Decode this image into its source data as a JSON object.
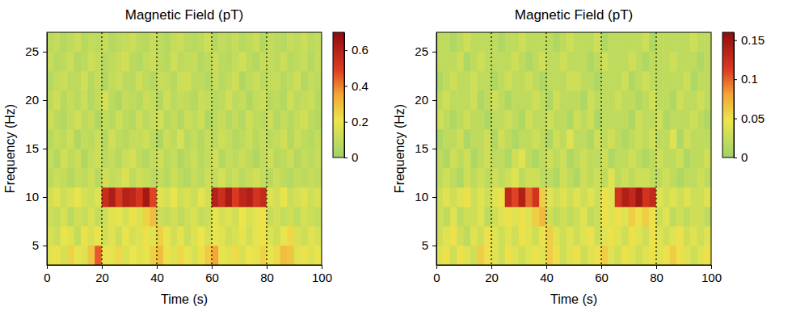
{
  "chart_data": [
    {
      "type": "heatmap",
      "title": "Magnetic Field (pT)",
      "xlabel": "Time (s)",
      "ylabel": "Frequency (Hz)",
      "xlim": [
        0,
        100
      ],
      "xticks": [
        0,
        20,
        40,
        60,
        80,
        100
      ],
      "ylim": [
        3,
        27
      ],
      "yticks": [
        5,
        10,
        15,
        20,
        25
      ],
      "x_bins": [
        0,
        2.5,
        5,
        7.5,
        10,
        12.5,
        15,
        17.5,
        20,
        22.5,
        25,
        27.5,
        30,
        32.5,
        35,
        37.5,
        40,
        42.5,
        45,
        47.5,
        50,
        52.5,
        55,
        57.5,
        60,
        62.5,
        65,
        67.5,
        70,
        72.5,
        75,
        77.5,
        80,
        82.5,
        85,
        87.5,
        90,
        92.5,
        95,
        97.5,
        100
      ],
      "y_bins": [
        3,
        5,
        7,
        9,
        11,
        13,
        15,
        17,
        19,
        21,
        23,
        25,
        27
      ],
      "vlines": [
        20,
        40,
        60,
        80
      ],
      "line_style": "dotted",
      "colorbar": {
        "lim": [
          0,
          0.7
        ],
        "ticks": [
          0,
          0.2,
          0.4,
          0.6
        ]
      },
      "z": [
        [
          0.18,
          0.22,
          0.15,
          0.25,
          0.2,
          0.17,
          0.28,
          0.45,
          0.22,
          0.19,
          0.24,
          0.16,
          0.21,
          0.18,
          0.2,
          0.26,
          0.3,
          0.22,
          0.17,
          0.24,
          0.2,
          0.15,
          0.22,
          0.27,
          0.35,
          0.2,
          0.18,
          0.23,
          0.16,
          0.21,
          0.19,
          0.25,
          0.2,
          0.23,
          0.3,
          0.28,
          0.18,
          0.22,
          0.17,
          0.2
        ],
        [
          0.15,
          0.12,
          0.2,
          0.18,
          0.1,
          0.22,
          0.16,
          0.2,
          0.14,
          0.18,
          0.12,
          0.2,
          0.15,
          0.17,
          0.22,
          0.18,
          0.26,
          0.2,
          0.14,
          0.19,
          0.12,
          0.17,
          0.21,
          0.15,
          0.2,
          0.18,
          0.13,
          0.16,
          0.2,
          0.14,
          0.19,
          0.22,
          0.17,
          0.13,
          0.2,
          0.24,
          0.16,
          0.12,
          0.18,
          0.15
        ],
        [
          0.12,
          0.1,
          0.15,
          0.08,
          0.14,
          0.11,
          0.16,
          0.1,
          0.13,
          0.18,
          0.2,
          0.15,
          0.22,
          0.17,
          0.25,
          0.3,
          0.12,
          0.1,
          0.14,
          0.09,
          0.13,
          0.16,
          0.1,
          0.12,
          0.2,
          0.15,
          0.18,
          0.14,
          0.21,
          0.16,
          0.19,
          0.22,
          0.11,
          0.14,
          0.1,
          0.13,
          0.09,
          0.15,
          0.12,
          0.1
        ],
        [
          0.14,
          0.18,
          0.12,
          0.16,
          0.2,
          0.15,
          0.13,
          0.17,
          0.55,
          0.62,
          0.5,
          0.6,
          0.58,
          0.52,
          0.64,
          0.48,
          0.18,
          0.15,
          0.2,
          0.13,
          0.16,
          0.12,
          0.19,
          0.14,
          0.6,
          0.54,
          0.63,
          0.5,
          0.58,
          0.61,
          0.52,
          0.56,
          0.17,
          0.14,
          0.2,
          0.12,
          0.15,
          0.18,
          0.13,
          0.16
        ],
        [
          0.08,
          0.12,
          0.1,
          0.06,
          0.11,
          0.09,
          0.13,
          0.07,
          0.14,
          0.1,
          0.12,
          0.16,
          0.09,
          0.13,
          0.11,
          0.08,
          0.1,
          0.07,
          0.12,
          0.09,
          0.06,
          0.11,
          0.08,
          0.13,
          0.1,
          0.15,
          0.09,
          0.12,
          0.08,
          0.11,
          0.14,
          0.1,
          0.07,
          0.12,
          0.09,
          0.06,
          0.1,
          0.08,
          0.11,
          0.09
        ],
        [
          0.1,
          0.06,
          0.14,
          0.09,
          0.12,
          0.05,
          0.1,
          0.13,
          0.08,
          0.11,
          0.07,
          0.12,
          0.15,
          0.09,
          0.06,
          0.1,
          0.13,
          0.08,
          0.11,
          0.05,
          0.09,
          0.12,
          0.07,
          0.1,
          0.14,
          0.06,
          0.11,
          0.08,
          0.12,
          0.09,
          0.05,
          0.1,
          0.13,
          0.07,
          0.09,
          0.12,
          0.06,
          0.1,
          0.08,
          0.11
        ],
        [
          0.07,
          0.11,
          0.09,
          0.13,
          0.05,
          0.1,
          0.08,
          0.12,
          0.06,
          0.14,
          0.09,
          0.07,
          0.11,
          0.1,
          0.13,
          0.08,
          0.05,
          0.12,
          0.09,
          0.15,
          0.07,
          0.1,
          0.06,
          0.11,
          0.08,
          0.13,
          0.1,
          0.06,
          0.09,
          0.12,
          0.07,
          0.11,
          0.08,
          0.1,
          0.14,
          0.06,
          0.12,
          0.09,
          0.07,
          0.1
        ],
        [
          0.12,
          0.08,
          0.06,
          0.1,
          0.14,
          0.09,
          0.11,
          0.05,
          0.1,
          0.07,
          0.13,
          0.09,
          0.06,
          0.12,
          0.08,
          0.11,
          0.14,
          0.07,
          0.1,
          0.06,
          0.12,
          0.09,
          0.13,
          0.05,
          0.08,
          0.11,
          0.07,
          0.1,
          0.06,
          0.13,
          0.09,
          0.08,
          0.12,
          0.06,
          0.1,
          0.07,
          0.11,
          0.14,
          0.09,
          0.06
        ],
        [
          0.09,
          0.13,
          0.07,
          0.11,
          0.08,
          0.12,
          0.06,
          0.1,
          0.15,
          0.08,
          0.05,
          0.11,
          0.09,
          0.07,
          0.12,
          0.1,
          0.06,
          0.13,
          0.08,
          0.11,
          0.09,
          0.06,
          0.12,
          0.1,
          0.07,
          0.09,
          0.14,
          0.08,
          0.11,
          0.05,
          0.1,
          0.12,
          0.07,
          0.09,
          0.06,
          0.13,
          0.08,
          0.1,
          0.12,
          0.07
        ],
        [
          0.06,
          0.1,
          0.12,
          0.08,
          0.09,
          0.14,
          0.07,
          0.11,
          0.05,
          0.1,
          0.12,
          0.08,
          0.07,
          0.13,
          0.09,
          0.06,
          0.11,
          0.1,
          0.07,
          0.12,
          0.14,
          0.08,
          0.09,
          0.06,
          0.11,
          0.07,
          0.1,
          0.13,
          0.05,
          0.09,
          0.12,
          0.08,
          0.1,
          0.11,
          0.07,
          0.09,
          0.13,
          0.06,
          0.1,
          0.08
        ],
        [
          0.11,
          0.07,
          0.09,
          0.12,
          0.06,
          0.08,
          0.13,
          0.1,
          0.07,
          0.09,
          0.11,
          0.14,
          0.08,
          0.06,
          0.1,
          0.12,
          0.09,
          0.07,
          0.13,
          0.08,
          0.1,
          0.11,
          0.06,
          0.09,
          0.12,
          0.08,
          0.07,
          0.1,
          0.14,
          0.09,
          0.06,
          0.11,
          0.1,
          0.08,
          0.12,
          0.07,
          0.09,
          0.11,
          0.06,
          0.1
        ],
        [
          0.08,
          0.1,
          0.06,
          0.09,
          0.12,
          0.07,
          0.1,
          0.08,
          0.11,
          0.06,
          0.09,
          0.1,
          0.12,
          0.08,
          0.07,
          0.11,
          0.09,
          0.06,
          0.1,
          0.12,
          0.08,
          0.07,
          0.09,
          0.13,
          0.06,
          0.1,
          0.08,
          0.11,
          0.07,
          0.09,
          0.12,
          0.06,
          0.1,
          0.08,
          0.07,
          0.11,
          0.09,
          0.12,
          0.08,
          0.1
        ]
      ]
    },
    {
      "type": "heatmap",
      "title": "Magnetic Field (pT)",
      "xlabel": "Time (s)",
      "ylabel": "Frequency (Hz)",
      "xlim": [
        0,
        100
      ],
      "xticks": [
        0,
        20,
        40,
        60,
        80,
        100
      ],
      "ylim": [
        3,
        27
      ],
      "yticks": [
        5,
        10,
        15,
        20,
        25
      ],
      "x_bins": [
        0,
        2.5,
        5,
        7.5,
        10,
        12.5,
        15,
        17.5,
        20,
        22.5,
        25,
        27.5,
        30,
        32.5,
        35,
        37.5,
        40,
        42.5,
        45,
        47.5,
        50,
        52.5,
        55,
        57.5,
        60,
        62.5,
        65,
        67.5,
        70,
        72.5,
        75,
        77.5,
        80,
        82.5,
        85,
        87.5,
        90,
        92.5,
        95,
        97.5,
        100
      ],
      "y_bins": [
        3,
        5,
        7,
        9,
        11,
        13,
        15,
        17,
        19,
        21,
        23,
        25,
        27
      ],
      "vlines": [
        20,
        40,
        60,
        80
      ],
      "line_style": "dotted",
      "colorbar": {
        "lim": [
          0,
          0.16
        ],
        "ticks": [
          0,
          0.05,
          0.1,
          0.15
        ]
      },
      "z": [
        [
          0.04,
          0.05,
          0.03,
          0.05,
          0.04,
          0.03,
          0.06,
          0.05,
          0.04,
          0.03,
          0.05,
          0.04,
          0.03,
          0.04,
          0.05,
          0.04,
          0.06,
          0.05,
          0.03,
          0.04,
          0.05,
          0.03,
          0.04,
          0.05,
          0.06,
          0.04,
          0.03,
          0.05,
          0.04,
          0.03,
          0.04,
          0.05,
          0.04,
          0.05,
          0.06,
          0.05,
          0.04,
          0.03,
          0.04,
          0.05
        ],
        [
          0.03,
          0.04,
          0.05,
          0.03,
          0.02,
          0.04,
          0.03,
          0.05,
          0.04,
          0.03,
          0.04,
          0.03,
          0.05,
          0.04,
          0.03,
          0.05,
          0.06,
          0.04,
          0.03,
          0.04,
          0.03,
          0.04,
          0.05,
          0.03,
          0.04,
          0.05,
          0.04,
          0.03,
          0.05,
          0.04,
          0.03,
          0.05,
          0.04,
          0.03,
          0.04,
          0.05,
          0.03,
          0.04,
          0.03,
          0.04
        ],
        [
          0.03,
          0.02,
          0.04,
          0.02,
          0.03,
          0.03,
          0.04,
          0.02,
          0.03,
          0.04,
          0.05,
          0.04,
          0.05,
          0.04,
          0.06,
          0.07,
          0.03,
          0.02,
          0.03,
          0.02,
          0.03,
          0.04,
          0.02,
          0.03,
          0.05,
          0.04,
          0.05,
          0.04,
          0.06,
          0.05,
          0.06,
          0.05,
          0.03,
          0.04,
          0.02,
          0.03,
          0.02,
          0.03,
          0.03,
          0.02
        ],
        [
          0.03,
          0.04,
          0.03,
          0.04,
          0.05,
          0.03,
          0.04,
          0.03,
          0.04,
          0.05,
          0.13,
          0.11,
          0.14,
          0.1,
          0.12,
          0.06,
          0.04,
          0.03,
          0.04,
          0.03,
          0.04,
          0.03,
          0.04,
          0.03,
          0.05,
          0.04,
          0.12,
          0.14,
          0.13,
          0.15,
          0.12,
          0.13,
          0.04,
          0.03,
          0.04,
          0.03,
          0.04,
          0.03,
          0.03,
          0.04
        ],
        [
          0.02,
          0.03,
          0.02,
          0.01,
          0.03,
          0.02,
          0.03,
          0.02,
          0.03,
          0.02,
          0.03,
          0.04,
          0.02,
          0.03,
          0.03,
          0.02,
          0.02,
          0.01,
          0.03,
          0.02,
          0.01,
          0.03,
          0.02,
          0.03,
          0.02,
          0.04,
          0.02,
          0.03,
          0.02,
          0.03,
          0.03,
          0.02,
          0.02,
          0.03,
          0.02,
          0.01,
          0.02,
          0.02,
          0.03,
          0.02
        ],
        [
          0.02,
          0.01,
          0.03,
          0.02,
          0.03,
          0.01,
          0.02,
          0.03,
          0.02,
          0.02,
          0.01,
          0.03,
          0.04,
          0.02,
          0.01,
          0.02,
          0.03,
          0.02,
          0.03,
          0.01,
          0.02,
          0.03,
          0.02,
          0.02,
          0.03,
          0.01,
          0.02,
          0.02,
          0.03,
          0.02,
          0.01,
          0.02,
          0.03,
          0.02,
          0.02,
          0.03,
          0.01,
          0.02,
          0.02,
          0.03
        ],
        [
          0.01,
          0.02,
          0.02,
          0.03,
          0.01,
          0.02,
          0.02,
          0.03,
          0.01,
          0.03,
          0.02,
          0.01,
          0.02,
          0.02,
          0.03,
          0.02,
          0.01,
          0.03,
          0.02,
          0.04,
          0.02,
          0.02,
          0.01,
          0.03,
          0.02,
          0.03,
          0.02,
          0.01,
          0.02,
          0.03,
          0.02,
          0.03,
          0.02,
          0.02,
          0.04,
          0.01,
          0.03,
          0.02,
          0.02,
          0.02
        ],
        [
          0.03,
          0.02,
          0.01,
          0.02,
          0.03,
          0.02,
          0.02,
          0.01,
          0.02,
          0.02,
          0.03,
          0.02,
          0.01,
          0.03,
          0.02,
          0.02,
          0.03,
          0.02,
          0.02,
          0.01,
          0.03,
          0.02,
          0.03,
          0.01,
          0.02,
          0.02,
          0.02,
          0.02,
          0.01,
          0.03,
          0.02,
          0.02,
          0.03,
          0.01,
          0.02,
          0.02,
          0.02,
          0.03,
          0.02,
          0.01
        ],
        [
          0.02,
          0.03,
          0.02,
          0.02,
          0.02,
          0.03,
          0.01,
          0.02,
          0.03,
          0.02,
          0.01,
          0.02,
          0.02,
          0.02,
          0.03,
          0.02,
          0.01,
          0.03,
          0.02,
          0.02,
          0.02,
          0.01,
          0.03,
          0.02,
          0.02,
          0.02,
          0.03,
          0.02,
          0.02,
          0.01,
          0.02,
          0.03,
          0.02,
          0.02,
          0.01,
          0.03,
          0.02,
          0.02,
          0.03,
          0.02
        ],
        [
          0.01,
          0.02,
          0.03,
          0.02,
          0.02,
          0.03,
          0.02,
          0.02,
          0.01,
          0.02,
          0.03,
          0.02,
          0.02,
          0.03,
          0.02,
          0.01,
          0.02,
          0.02,
          0.02,
          0.03,
          0.03,
          0.02,
          0.02,
          0.01,
          0.02,
          0.02,
          0.02,
          0.03,
          0.01,
          0.02,
          0.03,
          0.02,
          0.02,
          0.02,
          0.02,
          0.02,
          0.03,
          0.01,
          0.02,
          0.02
        ],
        [
          0.02,
          0.02,
          0.02,
          0.03,
          0.01,
          0.02,
          0.03,
          0.02,
          0.02,
          0.02,
          0.02,
          0.03,
          0.02,
          0.01,
          0.02,
          0.03,
          0.02,
          0.02,
          0.03,
          0.02,
          0.02,
          0.02,
          0.01,
          0.02,
          0.03,
          0.02,
          0.02,
          0.02,
          0.03,
          0.02,
          0.01,
          0.02,
          0.02,
          0.02,
          0.03,
          0.02,
          0.02,
          0.02,
          0.01,
          0.02
        ],
        [
          0.02,
          0.02,
          0.01,
          0.02,
          0.03,
          0.02,
          0.02,
          0.02,
          0.02,
          0.01,
          0.02,
          0.02,
          0.03,
          0.02,
          0.02,
          0.02,
          0.02,
          0.01,
          0.02,
          0.03,
          0.02,
          0.02,
          0.02,
          0.03,
          0.01,
          0.02,
          0.02,
          0.02,
          0.02,
          0.02,
          0.03,
          0.01,
          0.02,
          0.02,
          0.02,
          0.02,
          0.02,
          0.03,
          0.02,
          0.02
        ]
      ]
    }
  ]
}
